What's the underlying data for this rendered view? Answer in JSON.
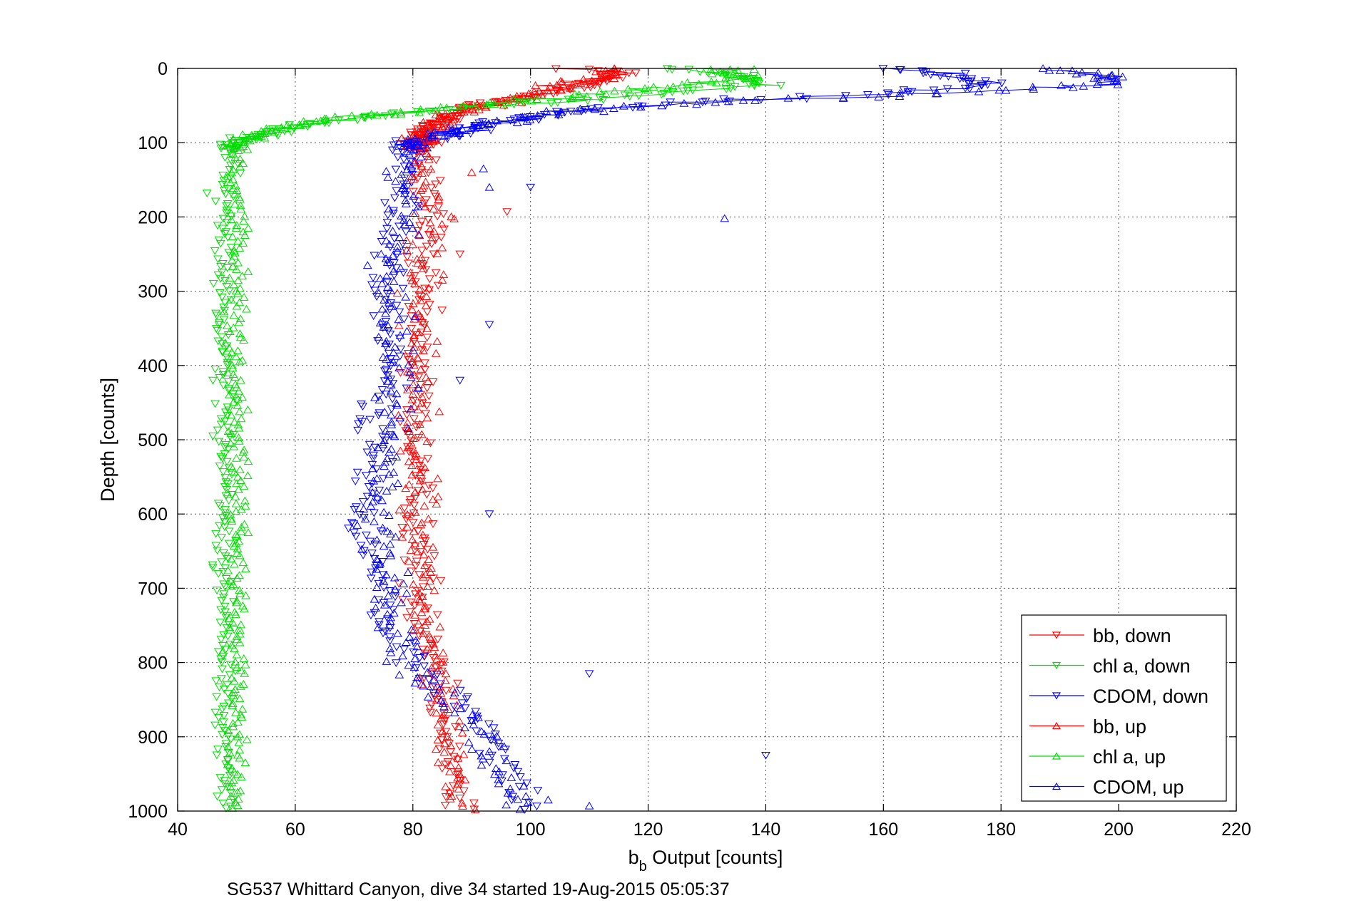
{
  "chart_data": {
    "type": "scatter",
    "xlabel_main": "b",
    "xlabel_sub": "b",
    "xlabel_rest": " Output [counts]",
    "ylabel": "Depth [counts]",
    "caption": "SG537 Whittard Canyon, dive 34 started 19-Aug-2015 05:05:37",
    "xlim": [
      40,
      220
    ],
    "ylim": [
      0,
      1000
    ],
    "y_reversed": true,
    "grid": true,
    "legend_position": "bottom-right",
    "xticks": [
      40,
      60,
      80,
      100,
      120,
      140,
      160,
      180,
      200,
      220
    ],
    "yticks": [
      0,
      100,
      200,
      300,
      400,
      500,
      600,
      700,
      800,
      900,
      1000
    ],
    "series": [
      {
        "name": "bb, down",
        "color": "#ff0000",
        "marker": "triangle-down",
        "profile": [
          [
            108,
            0
          ],
          [
            116,
            5
          ],
          [
            113,
            12
          ],
          [
            110,
            20
          ],
          [
            105,
            30
          ],
          [
            97,
            42
          ],
          [
            90,
            52
          ],
          [
            86,
            65
          ],
          [
            82,
            80
          ],
          [
            81,
            95
          ],
          [
            81,
            110
          ],
          [
            82,
            150
          ],
          [
            83,
            200
          ],
          [
            82,
            250
          ],
          [
            81,
            300
          ],
          [
            81,
            350
          ],
          [
            81,
            400
          ],
          [
            81,
            450
          ],
          [
            80,
            500
          ],
          [
            81,
            550
          ],
          [
            81,
            600
          ],
          [
            81,
            650
          ],
          [
            81,
            700
          ],
          [
            82,
            750
          ],
          [
            84,
            800
          ],
          [
            85,
            850
          ],
          [
            86,
            900
          ],
          [
            87,
            950
          ],
          [
            88,
            1000
          ]
        ],
        "outliers": [
          [
            96,
            193
          ],
          [
            88,
            250
          ]
        ]
      },
      {
        "name": "chl a, down",
        "color": "#00dd00",
        "marker": "triangle-down",
        "profile": [
          [
            125,
            0
          ],
          [
            134,
            8
          ],
          [
            140,
            22
          ],
          [
            122,
            35
          ],
          [
            95,
            50
          ],
          [
            75,
            62
          ],
          [
            60,
            78
          ],
          [
            55,
            88
          ],
          [
            50,
            100
          ],
          [
            49,
            120
          ],
          [
            48,
            150
          ],
          [
            48,
            200
          ],
          [
            48,
            250
          ],
          [
            48,
            300
          ],
          [
            48,
            350
          ],
          [
            48,
            400
          ],
          [
            48,
            450
          ],
          [
            48,
            500
          ],
          [
            48,
            550
          ],
          [
            48,
            600
          ],
          [
            48,
            650
          ],
          [
            48,
            700
          ],
          [
            48,
            750
          ],
          [
            48,
            800
          ],
          [
            48,
            850
          ],
          [
            48,
            900
          ],
          [
            48,
            950
          ],
          [
            48,
            1000
          ]
        ],
        "outliers": [
          [
            46,
            420
          ],
          [
            45,
            168
          ],
          [
            46,
            495
          ],
          [
            46,
            672
          ]
        ]
      },
      {
        "name": "CDOM, down",
        "color": "#0000ff",
        "marker": "triangle-down",
        "profile": [
          [
            163,
            0
          ],
          [
            172,
            10
          ],
          [
            180,
            22
          ],
          [
            160,
            35
          ],
          [
            135,
            42
          ],
          [
            110,
            55
          ],
          [
            95,
            72
          ],
          [
            88,
            88
          ],
          [
            79,
            100
          ],
          [
            78,
            150
          ],
          [
            77,
            200
          ],
          [
            77,
            250
          ],
          [
            75,
            300
          ],
          [
            76,
            350
          ],
          [
            77,
            400
          ],
          [
            74,
            450
          ],
          [
            73,
            500
          ],
          [
            73,
            550
          ],
          [
            72,
            600
          ],
          [
            73,
            650
          ],
          [
            74,
            700
          ],
          [
            76,
            750
          ],
          [
            80,
            800
          ],
          [
            88,
            850
          ],
          [
            94,
            900
          ],
          [
            97,
            950
          ],
          [
            99,
            1000
          ]
        ],
        "outliers": [
          [
            100,
            160
          ],
          [
            93,
            345
          ],
          [
            88,
            420
          ],
          [
            93,
            600
          ],
          [
            110,
            815
          ],
          [
            140,
            925
          ],
          [
            71,
            472
          ],
          [
            70,
            625
          ]
        ]
      },
      {
        "name": "bb, up",
        "color": "#ff0000",
        "marker": "triangle-up",
        "profile": [
          [
            115,
            0
          ],
          [
            113,
            10
          ],
          [
            105,
            25
          ],
          [
            97,
            40
          ],
          [
            92,
            50
          ],
          [
            88,
            60
          ],
          [
            85,
            70
          ],
          [
            83,
            82
          ],
          [
            81,
            95
          ],
          [
            81,
            110
          ],
          [
            82,
            150
          ],
          [
            83,
            200
          ],
          [
            82,
            250
          ],
          [
            81,
            300
          ],
          [
            81,
            350
          ],
          [
            81,
            400
          ],
          [
            81,
            450
          ],
          [
            80,
            500
          ],
          [
            81,
            550
          ],
          [
            81,
            600
          ],
          [
            81,
            650
          ],
          [
            81,
            700
          ],
          [
            82,
            750
          ],
          [
            84,
            800
          ],
          [
            85,
            850
          ],
          [
            86,
            900
          ],
          [
            87,
            950
          ],
          [
            88,
            1000
          ]
        ],
        "outliers": [
          [
            90,
            140
          ],
          [
            85,
            285
          ]
        ]
      },
      {
        "name": "chl a, up",
        "color": "#00dd00",
        "marker": "triangle-up",
        "profile": [
          [
            135,
            0
          ],
          [
            136,
            12
          ],
          [
            125,
            25
          ],
          [
            100,
            42
          ],
          [
            80,
            58
          ],
          [
            62,
            72
          ],
          [
            55,
            85
          ],
          [
            52,
            95
          ],
          [
            50,
            105
          ],
          [
            50,
            150
          ],
          [
            50,
            200
          ],
          [
            50,
            250
          ],
          [
            50,
            300
          ],
          [
            50,
            350
          ],
          [
            50,
            400
          ],
          [
            50,
            450
          ],
          [
            50,
            500
          ],
          [
            50,
            550
          ],
          [
            50,
            600
          ],
          [
            50,
            650
          ],
          [
            50,
            700
          ],
          [
            50,
            750
          ],
          [
            50,
            800
          ],
          [
            50,
            850
          ],
          [
            50,
            900
          ],
          [
            50,
            950
          ],
          [
            50,
            1000
          ]
        ],
        "outliers": [
          [
            52,
            215
          ],
          [
            52,
            625
          ]
        ]
      },
      {
        "name": "CDOM, up",
        "color": "#0000ff",
        "marker": "triangle-up",
        "profile": [
          [
            190,
            0
          ],
          [
            198,
            10
          ],
          [
            200,
            18
          ],
          [
            185,
            28
          ],
          [
            155,
            38
          ],
          [
            130,
            45
          ],
          [
            110,
            55
          ],
          [
            98,
            68
          ],
          [
            88,
            82
          ],
          [
            81,
            95
          ],
          [
            79,
            130
          ],
          [
            78,
            200
          ],
          [
            77,
            250
          ],
          [
            76,
            300
          ],
          [
            77,
            350
          ],
          [
            78,
            400
          ],
          [
            77,
            450
          ],
          [
            76,
            500
          ],
          [
            75,
            550
          ],
          [
            74,
            600
          ],
          [
            75,
            650
          ],
          [
            76,
            700
          ],
          [
            77,
            750
          ],
          [
            79,
            800
          ],
          [
            86,
            850
          ],
          [
            92,
            900
          ],
          [
            95,
            950
          ],
          [
            98,
            1000
          ]
        ],
        "outliers": [
          [
            92,
            135
          ],
          [
            93,
            160
          ],
          [
            133,
            202
          ],
          [
            103,
            985
          ],
          [
            110,
            993
          ]
        ]
      }
    ]
  }
}
